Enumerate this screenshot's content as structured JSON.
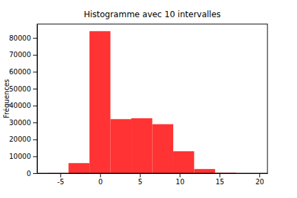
{
  "chart_data": {
    "type": "histogram",
    "title": "Histogramme avec 10 intervalles",
    "y_label": "Fréquences",
    "bins": [
      -6.6,
      -3.97,
      -1.34,
      1.29,
      3.92,
      6.55,
      9.18,
      11.81,
      14.44,
      17.07,
      19.7
    ],
    "counts": [
      100,
      6000,
      84000,
      32000,
      32500,
      29000,
      13000,
      2500,
      300,
      20
    ],
    "color": "#ff3333",
    "xlim": [
      -7.915,
      21.015
    ],
    "xticks": [
      -5,
      0,
      5,
      10,
      15,
      20
    ],
    "ylim": [
      0,
      88200
    ],
    "yticks": [
      0,
      10000,
      20000,
      30000,
      40000,
      50000,
      60000,
      70000,
      80000
    ],
    "grid": false
  }
}
